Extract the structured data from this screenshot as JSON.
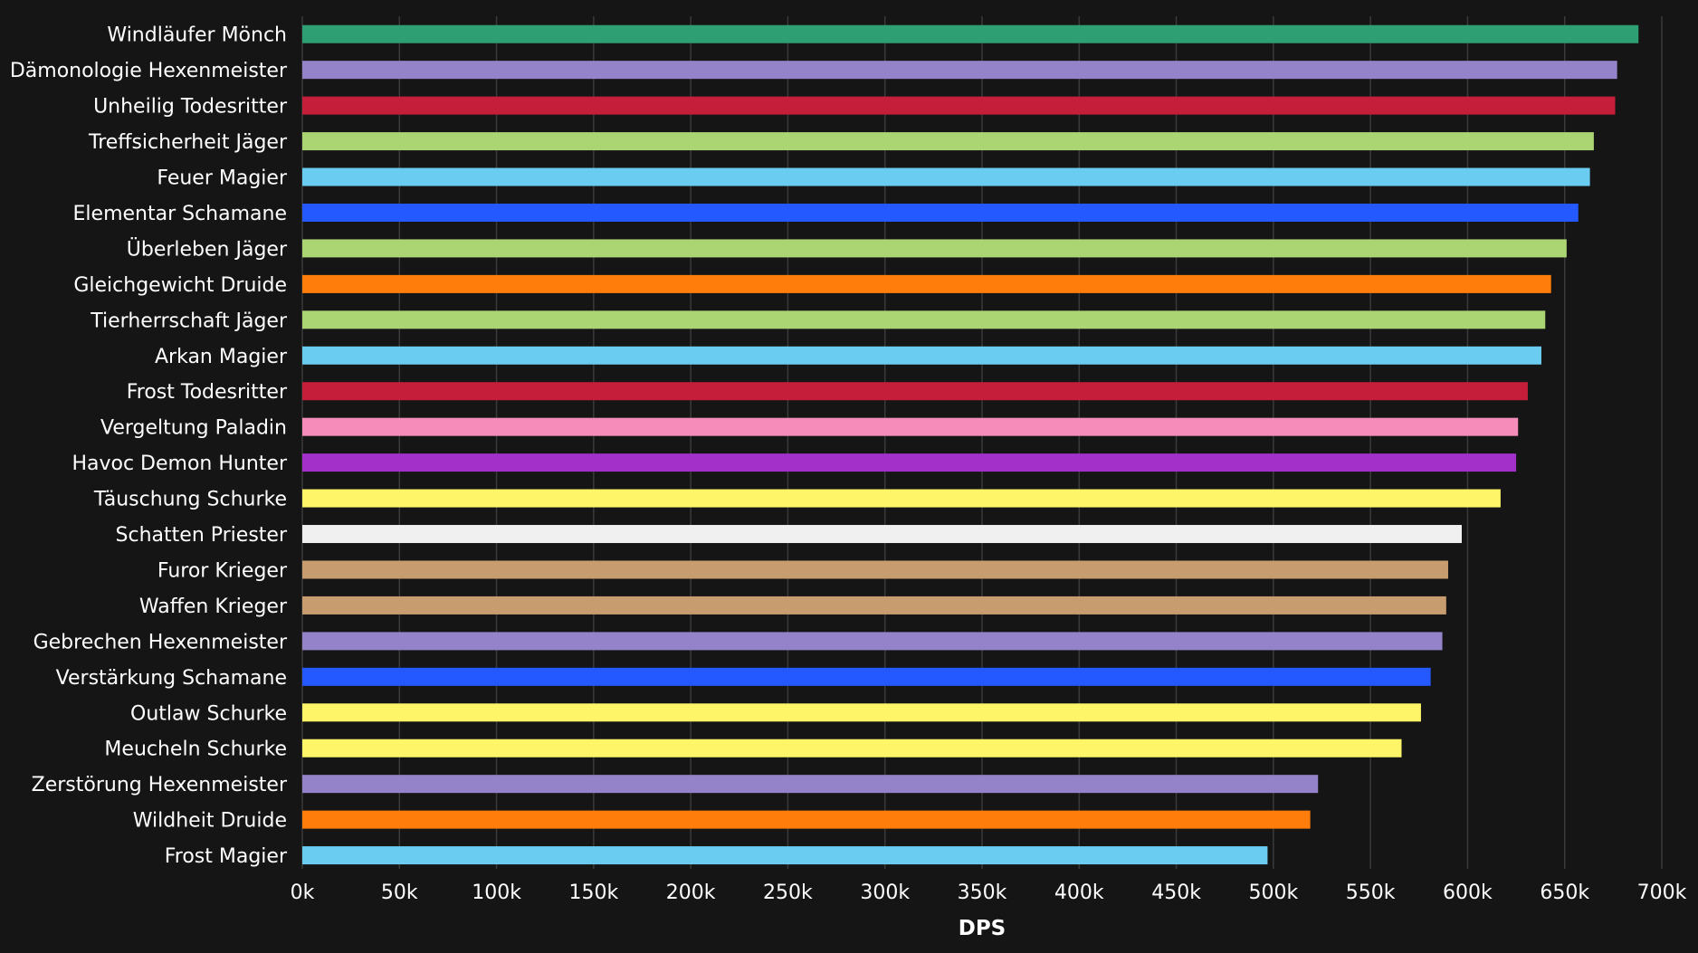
{
  "chart_data": {
    "type": "bar",
    "orientation": "horizontal",
    "xlabel": "DPS",
    "ylabel": "",
    "xlim": [
      0,
      700000
    ],
    "grid": true,
    "x_tick_values": [
      0,
      50000,
      100000,
      150000,
      200000,
      250000,
      300000,
      350000,
      400000,
      450000,
      500000,
      550000,
      600000,
      650000,
      700000
    ],
    "x_tick_labels": [
      "0k",
      "50k",
      "100k",
      "150k",
      "200k",
      "250k",
      "300k",
      "350k",
      "400k",
      "450k",
      "500k",
      "550k",
      "600k",
      "650k",
      "700k"
    ],
    "categories": [
      "Windläufer Mönch",
      "Dämonologie Hexenmeister",
      "Unheilig Todesritter",
      "Treffsicherheit Jäger",
      "Feuer Magier",
      "Elementar Schamane",
      "Überleben Jäger",
      "Gleichgewicht Druide",
      "Tierherrschaft Jäger",
      "Arkan Magier",
      "Frost Todesritter",
      "Vergeltung Paladin",
      "Havoc Demon Hunter",
      "Täuschung Schurke",
      "Schatten Priester",
      "Furor Krieger",
      "Waffen Krieger",
      "Gebrechen Hexenmeister",
      "Verstärkung Schamane",
      "Outlaw Schurke",
      "Meucheln Schurke",
      "Zerstörung Hexenmeister",
      "Wildheit Druide",
      "Frost Magier"
    ],
    "values": [
      688000,
      677000,
      676000,
      665000,
      663000,
      657000,
      651000,
      643000,
      640000,
      638000,
      631000,
      626000,
      625000,
      617000,
      597000,
      590000,
      589000,
      587000,
      581000,
      576000,
      566000,
      523000,
      519000,
      497000
    ],
    "colors": [
      "#2E9E73",
      "#9483C9",
      "#C41E3A",
      "#ABD473",
      "#69CCF0",
      "#2459FF",
      "#ABD473",
      "#FF7D0A",
      "#ABD473",
      "#69CCF0",
      "#C41E3A",
      "#F58CBA",
      "#A330C9",
      "#FFF569",
      "#F0F0F0",
      "#C79C6E",
      "#C79C6E",
      "#9483C9",
      "#2459FF",
      "#FFF569",
      "#FFF569",
      "#9483C9",
      "#FF7D0A",
      "#69CCF0"
    ]
  },
  "colors": {
    "background": "#151515",
    "text": "#ffffff",
    "grid": "#3a3a3a"
  }
}
